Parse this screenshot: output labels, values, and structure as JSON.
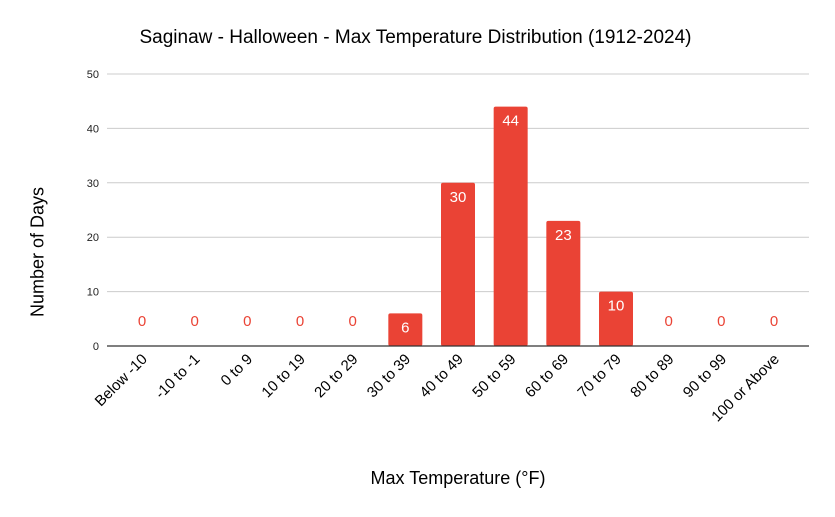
{
  "chart_data": {
    "type": "bar",
    "title": "Saginaw - Halloween - Max Temperature Distribution (1912-2024)",
    "xlabel": "Max Temperature (°F)",
    "ylabel": "Number of Days",
    "categories": [
      "Below -10",
      "-10 to -1",
      "0 to 9",
      "10 to 19",
      "20 to 29",
      "30 to 39",
      "40 to 49",
      "50 to 59",
      "60 to 69",
      "70 to 79",
      "80 to 89",
      "90 to 99",
      "100 or Above"
    ],
    "values": [
      0,
      0,
      0,
      0,
      0,
      6,
      30,
      44,
      23,
      10,
      0,
      0,
      0
    ],
    "ylim": [
      0,
      50
    ],
    "yticks": [
      0,
      10,
      20,
      30,
      40,
      50
    ],
    "grid": true,
    "legend": null,
    "colors": {
      "bar": "#ea4335",
      "label_inside": "#ffffff",
      "label_zero": "#ea4335",
      "grid": "#cccccc",
      "axis": "#333333"
    }
  }
}
